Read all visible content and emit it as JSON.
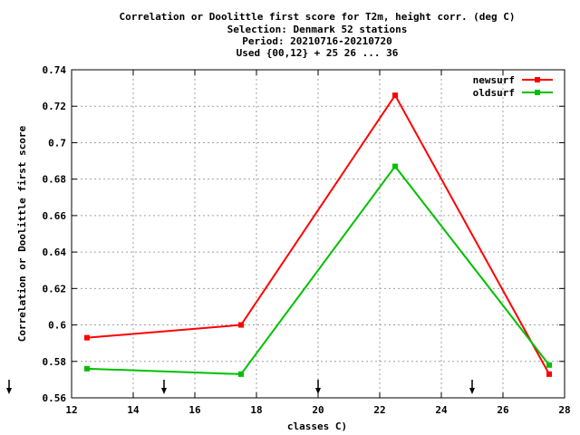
{
  "chart_data": {
    "type": "line",
    "title_lines": [
      "Correlation or Doolittle first score  for T2m, height corr. (deg C)",
      "Selection: Denmark     52 stations",
      "Period: 20210716-20210720",
      "Used {00,12} + 25 26 ... 36"
    ],
    "xlabel": "classes C)",
    "ylabel": "Correlation or Doolittle first score",
    "xlim": [
      12,
      28
    ],
    "ylim": [
      0.56,
      0.74
    ],
    "x_ticks": [
      12,
      14,
      16,
      18,
      20,
      22,
      24,
      26,
      28
    ],
    "y_ticks": [
      0.56,
      0.58,
      0.6,
      0.62,
      0.64,
      0.66,
      0.68,
      0.7,
      0.72,
      0.74
    ],
    "x_tick_labels": [
      "12",
      "14",
      "16",
      "18",
      "20",
      "22",
      "24",
      "26",
      "28"
    ],
    "y_tick_labels": [
      "0.56",
      "0.58",
      "0.6",
      "0.62",
      "0.64",
      "0.66",
      "0.68",
      "0.7",
      "0.72",
      "0.74"
    ],
    "grid": true,
    "legend_position": "top-right",
    "arrow_markers_x": [
      15,
      20,
      25
    ],
    "series": [
      {
        "name": "newsurf",
        "color": "#ff0000",
        "x": [
          12.5,
          17.5,
          22.5,
          27.5
        ],
        "y": [
          0.593,
          0.6,
          0.726,
          0.573
        ]
      },
      {
        "name": "oldsurf",
        "color": "#00c000",
        "x": [
          12.5,
          17.5,
          22.5,
          27.5
        ],
        "y": [
          0.576,
          0.573,
          0.687,
          0.578
        ]
      }
    ]
  }
}
